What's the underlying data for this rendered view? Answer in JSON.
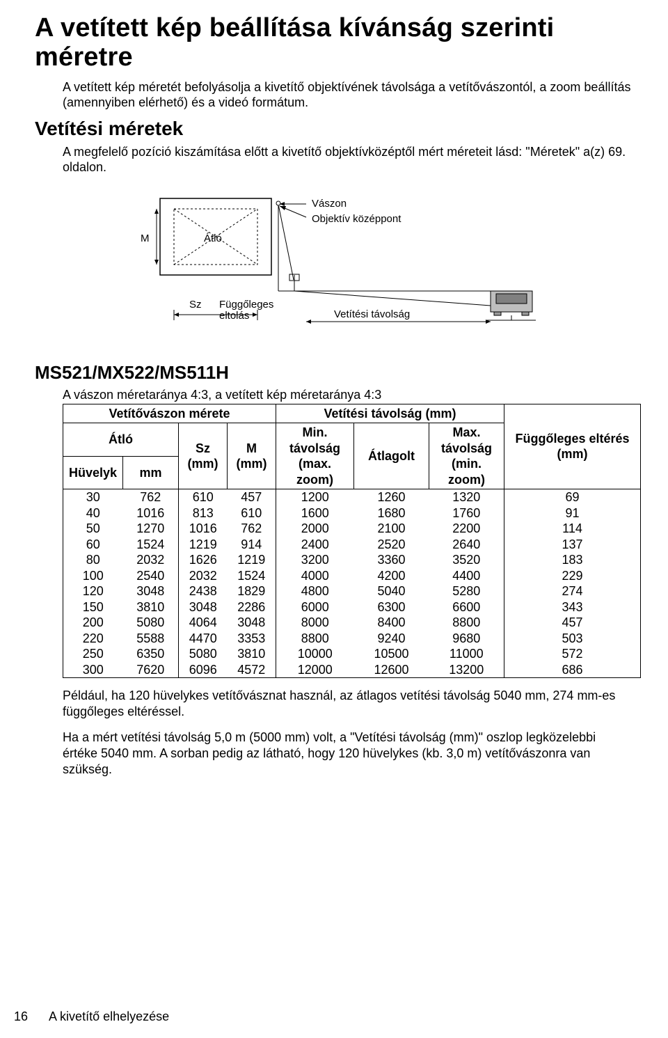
{
  "title": "A vetített kép beállítása kívánság szerinti méretre",
  "intro_para": "A vetített kép méretét befolyásolja a kivetítő objektívének távolsága a vetítővászontól, a zoom beállítás (amennyiben elérhető) és a videó formátum.",
  "sub_heading": "Vetítési méretek",
  "sub_para": "A megfelelő pozíció kiszámítása előtt a kivetítő objektívközéptől mért méreteit lásd: \"Méretek\" a(z) 69. oldalon.",
  "diagram": {
    "label_m": "M",
    "label_atlo": "Átló",
    "label_vaszon": "Vászon",
    "label_objcenter": "Objektív középpont",
    "label_sz": "Sz",
    "label_offset": "Függőleges eltolás",
    "label_projdist": "Vetítési távolság",
    "stroke": "#000000",
    "fill": "#bfbfbf"
  },
  "model_heading": "MS521/MX522/MS511H",
  "table_caption": "A vászon méretaránya 4:3, a vetített kép méretaránya 4:3",
  "table": {
    "header_screen": "Vetítővászon mérete",
    "header_projdist": "Vetítési távolság (mm)",
    "header_offset": "Függőleges eltérés (mm)",
    "header_atlo": "Átló",
    "header_sz": "Sz (mm)",
    "header_m": "M (mm)",
    "header_min": "Min. távolság (max. zoom)",
    "header_avg": "Átlagolt",
    "header_max": "Max. távolság (min. zoom)",
    "header_inch": "Hüvelyk",
    "header_mm": "mm",
    "rows": [
      [
        30,
        762,
        610,
        457,
        1200,
        1260,
        1320,
        69
      ],
      [
        40,
        1016,
        813,
        610,
        1600,
        1680,
        1760,
        91
      ],
      [
        50,
        1270,
        1016,
        762,
        2000,
        2100,
        2200,
        114
      ],
      [
        60,
        1524,
        1219,
        914,
        2400,
        2520,
        2640,
        137
      ],
      [
        80,
        2032,
        1626,
        1219,
        3200,
        3360,
        3520,
        183
      ],
      [
        100,
        2540,
        2032,
        1524,
        4000,
        4200,
        4400,
        229
      ],
      [
        120,
        3048,
        2438,
        1829,
        4800,
        5040,
        5280,
        274
      ],
      [
        150,
        3810,
        3048,
        2286,
        6000,
        6300,
        6600,
        343
      ],
      [
        200,
        5080,
        4064,
        3048,
        8000,
        8400,
        8800,
        457
      ],
      [
        220,
        5588,
        4470,
        3353,
        8800,
        9240,
        9680,
        503
      ],
      [
        250,
        6350,
        5080,
        3810,
        10000,
        10500,
        11000,
        572
      ],
      [
        300,
        7620,
        6096,
        4572,
        12000,
        12600,
        13200,
        686
      ]
    ]
  },
  "body_para1": "Például, ha 120 hüvelykes vetítővásznat használ, az átlagos vetítési távolság 5040 mm, 274 mm-es függőleges eltéréssel.",
  "body_para2": "Ha a mért vetítési távolság 5,0 m (5000 mm) volt, a \"Vetítési távolság (mm)\" oszlop legközelebbi értéke 5040 mm. A sorban pedig az látható, hogy 120 hüvelykes (kb. 3,0 m) vetítővászonra van szükség.",
  "footer": {
    "page": "16",
    "section": "A kivetítő elhelyezése"
  }
}
